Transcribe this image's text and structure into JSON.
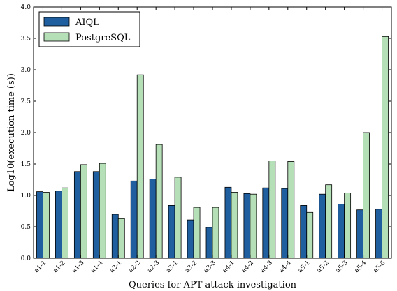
{
  "chart_data": {
    "type": "bar",
    "title": "",
    "xlabel": "Queries for APT attack investigation",
    "ylabel": "Log10(execution time (s))",
    "ylim": [
      0,
      4.0
    ],
    "yticks": [
      "0.0",
      "0.5",
      "1.0",
      "1.5",
      "2.0",
      "2.5",
      "3.0",
      "3.5",
      "4.0"
    ],
    "ytick_values": [
      0,
      0.5,
      1.0,
      1.5,
      2.0,
      2.5,
      3.0,
      3.5,
      4.0
    ],
    "grid": false,
    "legend_position": "top-left",
    "categories": [
      "a1-1",
      "a1-2",
      "a1-3",
      "a1-4",
      "a2-1",
      "a2-2",
      "a2-3",
      "a3-1",
      "a3-2",
      "a3-3",
      "a4-1",
      "a4-2",
      "a4-3",
      "a4-4",
      "a5-1",
      "a5-2",
      "a5-3",
      "a5-4",
      "a5-5"
    ],
    "series": [
      {
        "name": "AIQL",
        "color": "#1f5fa0",
        "values": [
          1.06,
          1.07,
          1.38,
          1.38,
          0.7,
          1.23,
          1.26,
          0.84,
          0.61,
          0.49,
          1.13,
          1.03,
          1.12,
          1.11,
          0.84,
          1.02,
          0.86,
          0.77,
          0.78
        ]
      },
      {
        "name": "PostgreSQL",
        "color": "#b5dfb6",
        "values": [
          1.05,
          1.12,
          1.49,
          1.51,
          0.63,
          2.92,
          1.81,
          1.29,
          0.81,
          0.81,
          1.05,
          1.02,
          1.55,
          1.54,
          0.73,
          1.17,
          1.04,
          2.0,
          3.53
        ]
      }
    ]
  }
}
